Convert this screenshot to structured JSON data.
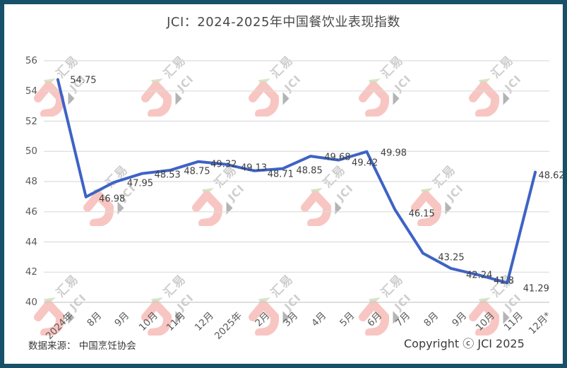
{
  "chart_data": {
    "type": "line",
    "title": "JCI：2024-2025年中国餐饮业表现指数",
    "categories": [
      "2024年",
      "8月",
      "9月",
      "10月",
      "11月",
      "12月",
      "2025年",
      "2月",
      "3月",
      "4月",
      "5月",
      "6月",
      "7月",
      "8月",
      "9月",
      "10月",
      "11月",
      "12月*"
    ],
    "values": [
      54.75,
      46.98,
      47.95,
      48.53,
      48.75,
      49.32,
      49.13,
      48.71,
      48.85,
      49.68,
      49.42,
      49.98,
      46.15,
      43.25,
      42.24,
      41.8,
      41.29,
      48.62
    ],
    "xlabel": "",
    "ylabel": "",
    "ylim": [
      40,
      56
    ],
    "yticks": [
      56,
      54,
      52,
      50,
      48,
      46,
      44,
      42,
      40
    ],
    "ytick_step": 2,
    "grid": true,
    "legend": "none",
    "line_color": "#3E63C5",
    "grid_color": "#DCDCDC",
    "axis_line_color": "#C9C9C9",
    "data_label_color": "#3F3F3F",
    "axis_text_color": "#595959"
  },
  "footer": {
    "source_note": "数据来源： 中国烹饪协会",
    "copyright": "Copyright ⓒ JCI 2025"
  },
  "watermark": {
    "brand_cn": "汇易",
    "brand_en": "JCI",
    "logo_pink": "#F8C6C2",
    "accent_green": "#CBE5BE",
    "text_gray": "#C2C2C2"
  },
  "frame": {
    "border_color": "#165069",
    "background": "#FFFFFF"
  }
}
